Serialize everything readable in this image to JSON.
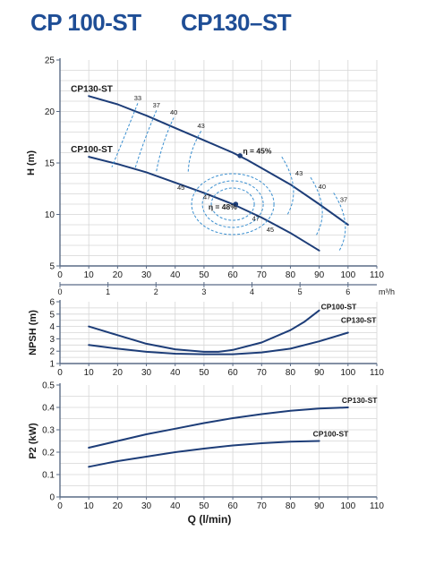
{
  "header": {
    "title_left": "CP 100-ST",
    "title_right": "CP130–ST"
  },
  "chart_data": [
    {
      "id": "head",
      "type": "line",
      "ylabel": "H (m)",
      "xlim": [
        0,
        110
      ],
      "ylim": [
        5,
        25
      ],
      "xticks": [
        0,
        10,
        20,
        30,
        40,
        50,
        60,
        70,
        80,
        90,
        100,
        110
      ],
      "yticks": [
        5,
        10,
        15,
        20,
        25
      ],
      "secondary_x": {
        "unit": "m³/h",
        "ticks": [
          0,
          1,
          2,
          3,
          4,
          5,
          6
        ]
      },
      "series": [
        {
          "name": "CP130-ST",
          "x": [
            10,
            20,
            30,
            40,
            50,
            60,
            65,
            70,
            80,
            90,
            100
          ],
          "y": [
            21.5,
            20.7,
            19.6,
            18.4,
            17.2,
            16.0,
            15.3,
            14.5,
            12.9,
            11.0,
            9.0
          ]
        },
        {
          "name": "CP100-ST",
          "x": [
            10,
            20,
            30,
            40,
            50,
            60,
            70,
            80,
            90
          ],
          "y": [
            15.6,
            14.9,
            14.1,
            13.1,
            12.1,
            11.0,
            9.7,
            8.2,
            6.5
          ]
        }
      ],
      "efficiency_labels": [
        {
          "text": "33",
          "x": 27,
          "y": 21.1
        },
        {
          "text": "37",
          "x": 33.5,
          "y": 20.4
        },
        {
          "text": "40",
          "x": 39.5,
          "y": 19.7
        },
        {
          "text": "43",
          "x": 49,
          "y": 18.4
        },
        {
          "text": "η = 45%",
          "x": 68.5,
          "y": 15.9
        },
        {
          "text": "45",
          "x": 42,
          "y": 12.4
        },
        {
          "text": "47",
          "x": 51,
          "y": 11.5
        },
        {
          "text": "η = 48%",
          "x": 56.5,
          "y": 10.5
        },
        {
          "text": "47",
          "x": 68,
          "y": 9.4
        },
        {
          "text": "45",
          "x": 73,
          "y": 8.3
        },
        {
          "text": "43",
          "x": 83,
          "y": 13.8
        },
        {
          "text": "40",
          "x": 91,
          "y": 12.5
        },
        {
          "text": "37",
          "x": 98.5,
          "y": 11.2
        }
      ]
    },
    {
      "id": "npsh",
      "type": "line",
      "ylabel": "NPSH (m)",
      "xlim": [
        0,
        110
      ],
      "ylim": [
        1,
        6
      ],
      "yticks": [
        1,
        2,
        3,
        4,
        5,
        6
      ],
      "series": [
        {
          "name": "CP100-ST",
          "x": [
            10,
            20,
            30,
            40,
            50,
            55,
            60,
            70,
            80,
            85,
            90
          ],
          "y": [
            4.0,
            3.3,
            2.6,
            2.15,
            1.95,
            1.95,
            2.1,
            2.7,
            3.7,
            4.4,
            5.3
          ]
        },
        {
          "name": "CP130-ST",
          "x": [
            10,
            20,
            30,
            40,
            50,
            60,
            70,
            80,
            90,
            100
          ],
          "y": [
            2.5,
            2.2,
            1.95,
            1.8,
            1.75,
            1.75,
            1.9,
            2.2,
            2.8,
            3.5
          ]
        }
      ]
    },
    {
      "id": "power",
      "type": "line",
      "ylabel": "P2 (kW)",
      "xlabel": "Q (l/min)",
      "xlim": [
        0,
        110
      ],
      "ylim": [
        0,
        0.5
      ],
      "xticks": [
        0,
        10,
        20,
        30,
        40,
        50,
        60,
        70,
        80,
        90,
        100,
        110
      ],
      "yticks": [
        0,
        0.1,
        0.2,
        0.3,
        0.4,
        0.5
      ],
      "series": [
        {
          "name": "CP130-ST",
          "x": [
            10,
            20,
            30,
            40,
            50,
            60,
            70,
            80,
            90,
            100
          ],
          "y": [
            0.22,
            0.25,
            0.28,
            0.305,
            0.33,
            0.352,
            0.37,
            0.385,
            0.395,
            0.4
          ]
        },
        {
          "name": "CP100-ST",
          "x": [
            10,
            20,
            30,
            40,
            50,
            60,
            70,
            80,
            90
          ],
          "y": [
            0.135,
            0.16,
            0.18,
            0.2,
            0.216,
            0.23,
            0.24,
            0.247,
            0.25
          ]
        }
      ]
    }
  ]
}
